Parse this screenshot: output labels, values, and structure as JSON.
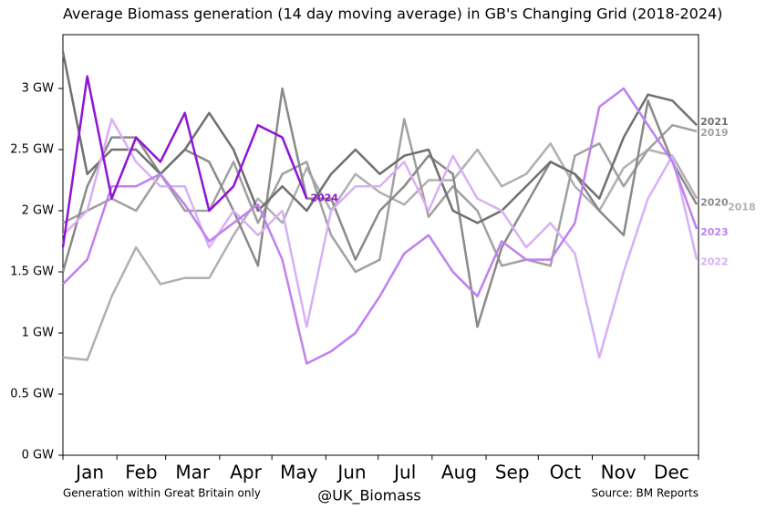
{
  "chart_data": {
    "type": "line",
    "title": "Average Biomass generation (14 day moving average) in   GB's Changing Grid (2018-2024)",
    "footnote_left": "Generation within Great Britain only",
    "footnote_center": "@UK_Biomass",
    "footnote_right": "Source: BM Reports",
    "categories": [
      "Jan",
      "Feb",
      "Mar",
      "Apr",
      "May",
      "Jun",
      "Jul",
      "Aug",
      "Sep",
      "Oct",
      "Nov",
      "Dec"
    ],
    "xticks": [
      1,
      32,
      60,
      91,
      121,
      152,
      182,
      213,
      244,
      274,
      305,
      335,
      366
    ],
    "xlim": [
      1,
      366
    ],
    "x": [
      1,
      15,
      29,
      43,
      57,
      71,
      85,
      99,
      113,
      127,
      141,
      155,
      169,
      183,
      197,
      211,
      225,
      239,
      253,
      267,
      281,
      295,
      309,
      323,
      337,
      351,
      365
    ],
    "ylim": [
      0,
      3.44
    ],
    "yticks": [
      {
        "value": 0,
        "label": "0 GW"
      },
      {
        "value": 0.5,
        "label": "0.5 GW"
      },
      {
        "value": 1,
        "label": "1 GW"
      },
      {
        "value": 1.5,
        "label": "1.5 GW"
      },
      {
        "value": 2,
        "label": "2 GW"
      },
      {
        "value": 2.5,
        "label": "2.5 GW"
      },
      {
        "value": 3,
        "label": "3 GW"
      }
    ],
    "series": [
      {
        "name": "2018",
        "color": "#b0b0b0",
        "values": [
          0.8,
          0.78,
          1.3,
          1.7,
          1.4,
          1.45,
          1.45,
          1.8,
          2.1,
          1.9,
          2.35,
          2.0,
          2.3,
          2.15,
          2.05,
          2.25,
          2.25,
          2.5,
          2.2,
          2.3,
          2.55,
          2.2,
          2.0,
          2.35,
          2.5,
          2.45,
          2.1
        ]
      },
      {
        "name": "2019",
        "color": "#a0a0a0",
        "values": [
          1.9,
          2.0,
          2.1,
          2.0,
          2.3,
          2.0,
          2.0,
          2.4,
          1.9,
          2.3,
          2.4,
          1.8,
          1.5,
          1.6,
          2.75,
          1.95,
          2.2,
          2.0,
          1.55,
          1.6,
          1.55,
          2.45,
          2.55,
          2.2,
          2.5,
          2.7,
          2.65
        ]
      },
      {
        "name": "2020",
        "color": "#8a8a8a",
        "values": [
          1.5,
          2.2,
          2.6,
          2.6,
          2.3,
          2.5,
          2.4,
          2.0,
          1.55,
          3.0,
          2.1,
          2.1,
          1.6,
          2.0,
          2.2,
          2.45,
          2.3,
          1.05,
          1.7,
          2.05,
          2.4,
          2.3,
          2.0,
          1.8,
          2.9,
          2.4,
          2.05
        ]
      },
      {
        "name": "2021",
        "color": "#707070",
        "values": [
          3.3,
          2.3,
          2.5,
          2.5,
          2.3,
          2.5,
          2.8,
          2.5,
          2.0,
          2.2,
          2.0,
          2.3,
          2.5,
          2.3,
          2.45,
          2.5,
          2.0,
          1.9,
          2.0,
          2.2,
          2.4,
          2.3,
          2.1,
          2.6,
          2.95,
          2.9,
          2.7
        ]
      },
      {
        "name": "2022",
        "color": "#d8b0f5",
        "values": [
          1.8,
          2.0,
          2.75,
          2.4,
          2.2,
          2.2,
          1.7,
          2.0,
          1.8,
          2.0,
          1.05,
          2.0,
          2.2,
          2.2,
          2.4,
          2.0,
          2.45,
          2.1,
          2.0,
          1.7,
          1.9,
          1.65,
          0.8,
          1.5,
          2.1,
          2.45,
          1.6
        ]
      },
      {
        "name": "2023",
        "color": "#c080f0",
        "values": [
          1.4,
          1.6,
          2.2,
          2.2,
          2.3,
          2.05,
          1.75,
          1.9,
          2.05,
          1.6,
          0.75,
          0.85,
          1.0,
          1.3,
          1.65,
          1.8,
          1.5,
          1.3,
          1.75,
          1.6,
          1.6,
          1.9,
          2.85,
          3.0,
          2.7,
          2.4,
          1.85
        ]
      },
      {
        "name": "2024",
        "color": "#9013d8",
        "values": [
          1.7,
          3.1,
          2.1,
          2.6,
          2.4,
          2.8,
          2.0,
          2.2,
          2.7,
          2.6,
          2.1,
          null,
          null,
          null,
          null,
          null,
          null,
          null,
          null,
          null,
          null,
          null,
          null,
          null,
          null,
          null,
          null
        ]
      }
    ]
  }
}
